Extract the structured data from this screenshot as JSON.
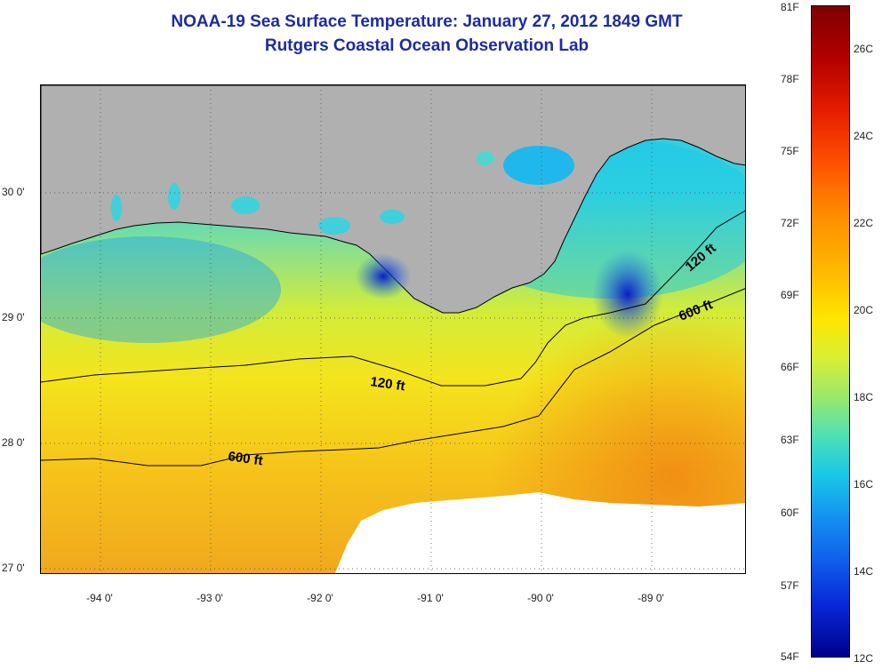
{
  "title": "NOAA-19 Sea Surface Temperature:  January 27, 2012 1849 GMT",
  "subtitle": "Rutgers Coastal Ocean Observation Lab",
  "lat_labels": [
    "30 0'",
    "29 0'",
    "28 0'",
    "27 0'"
  ],
  "lon_labels": [
    "-94 0'",
    "-93 0'",
    "-92 0'",
    "-91 0'",
    "-90 0'",
    "-89 0'"
  ],
  "contour_labels": [
    "120 ft",
    "600 ft",
    "120 ft",
    "600 ft"
  ],
  "colorbar": {
    "fahrenheit": [
      "81F",
      "78F",
      "75F",
      "72F",
      "69F",
      "66F",
      "63F",
      "60F",
      "57F",
      "54F"
    ],
    "celsius": [
      "26C",
      "24C",
      "22C",
      "20C",
      "18C",
      "16C",
      "14C",
      "12C"
    ]
  },
  "colors": {
    "land": "#b0b0b0",
    "title": "#1c2ca0",
    "no_data": "#ffffff"
  }
}
